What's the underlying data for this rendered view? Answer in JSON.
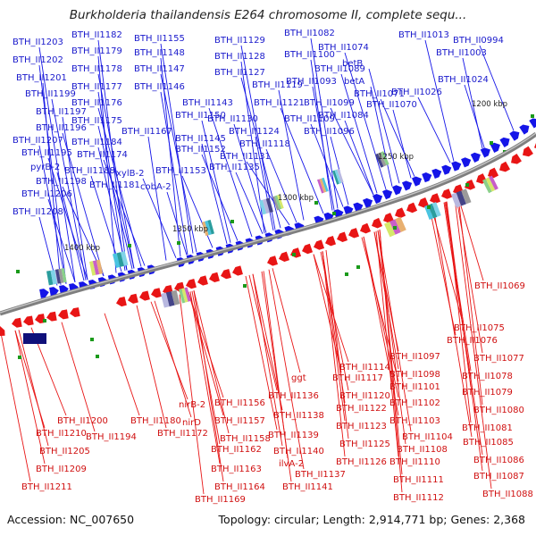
{
  "title": "Burkholderia thailandensis E264 chromosome II, complete sequ...",
  "footer": {
    "accession_label": "Accession:",
    "accession": "NC_007650",
    "topology_label": "Topology:",
    "topology": "circular",
    "length_label": "Length:",
    "length": "2,914,771 bp",
    "genes_label": "Genes:",
    "genes": "2,368"
  },
  "colors": {
    "forward_strand": "#1515e8",
    "reverse_strand": "#e81515",
    "backbone": "#8c8c8c",
    "rna": "#1a9a1a"
  },
  "scale_labels": [
    "1200 kbp",
    "1250 kbp",
    "1300 kbp",
    "1350 kbp",
    "1400 kbp"
  ],
  "genes_top": [
    "BTH_II1203",
    "BTH_II1182",
    "BTH_II1155",
    "BTH_II1129",
    "BTH_II1082",
    "BTH_II1013",
    "BTH_II0994",
    "BTH_II1202",
    "BTH_II1179",
    "BTH_II1148",
    "BTH_II1128",
    "BTH_II1100",
    "BTH_II1074",
    "BTH_II1003",
    "BTH_II1201",
    "BTH_II1178",
    "BTH_II1147",
    "BTH_II1127",
    "BTH_II1089",
    "betB",
    "BTH_II1199",
    "BTH_II1177",
    "BTH_II1146",
    "BTH_II1119",
    "BTH_II1093",
    "betA",
    "BTH_II1024",
    "BTH_II1197",
    "BTH_II1176",
    "BTH_II1143",
    "BTH_II1121",
    "BTH_II1099",
    "BTH_II1071",
    "BTH_II1026",
    "BTH_II1196",
    "BTH_II1175",
    "BTH_II1150",
    "BTH_II1130",
    "BTH_II1109",
    "BTH_II1084",
    "BTH_II1070",
    "BTH_II1207",
    "BTH_II1184",
    "BTH_II1167",
    "BTH_II1145",
    "BTH_II1124",
    "BTH_II1096",
    "BTH_II1195",
    "BTH_II1174",
    "BTH_II1152",
    "BTH_II1118",
    "pyrB-2",
    "BTH_II1188",
    "xylB-2",
    "BTH_II1131",
    "BTH_II1198",
    "BTH_II1181",
    "BTH_II1153",
    "BTH_II1135",
    "BTH_II1206",
    "cobA-2",
    "BTH_II1208"
  ],
  "genes_bottom": [
    "BTH_II1069",
    "BTH_II1075",
    "BTH_II1076",
    "BTH_II1077",
    "BTH_II1078",
    "BTH_II1079",
    "BTH_II1080",
    "BTH_II1081",
    "BTH_II1085",
    "BTH_II1086",
    "BTH_II1087",
    "BTH_II1088",
    "BTH_II1097",
    "BTH_II1098",
    "BTH_II1114",
    "BTH_II1117",
    "BTH_II1101",
    "BTH_II1120",
    "BTH_II1102",
    "BTH_II1122",
    "BTH_II1103",
    "BTH_II1123",
    "BTH_II1104",
    "BTH_II1125",
    "BTH_II1108",
    "BTH_II1126",
    "BTH_II1110",
    "BTH_II1111",
    "BTH_II1112",
    "ggt",
    "BTH_II1136",
    "BTH_II1138",
    "BTH_II1139",
    "BTH_II1140",
    "ilvA-2",
    "BTH_II1137",
    "BTH_II1141",
    "nirB-2",
    "BTH_II1156",
    "nirD",
    "BTH_II1157",
    "BTH_II1158",
    "BTH_II1162",
    "BTH_II1163",
    "BTH_II1164",
    "BTH_II1169",
    "BTH_II1180",
    "BTH_II1172",
    "BTH_II1200",
    "BTH_II1210",
    "BTH_II1194",
    "BTH_II1205",
    "BTH_II1209",
    "BTH_II1211"
  ]
}
